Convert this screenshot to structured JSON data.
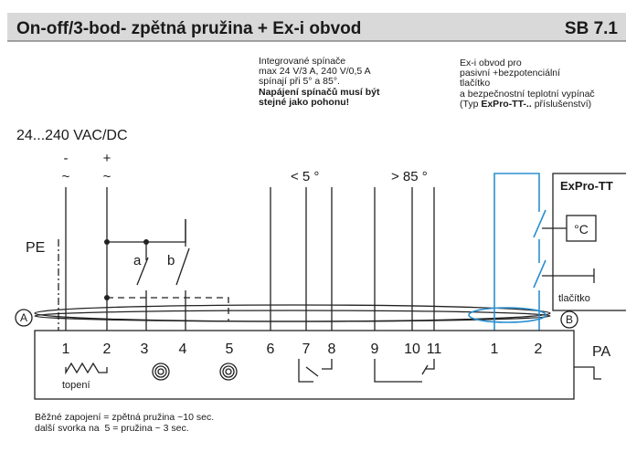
{
  "header": {
    "title": "On-off/3-bod- zpětná pružina + Ex-i obvod",
    "code": "SB 7.1"
  },
  "supply": {
    "label": "24...240 VAC/DC",
    "minus": "-",
    "plus": "+",
    "ac": [
      "~",
      "~"
    ]
  },
  "pe": "PE",
  "switch_labels": [
    "a",
    "b"
  ],
  "limit_switches": {
    "note": [
      "Integrované spínače",
      "max 24 V/3 A, 240 V/0,5 A",
      "spínají při 5° a 85°."
    ],
    "bold_note": [
      "Napájení spínačů musí být",
      "stejné jako pohonu!"
    ],
    "low": "< 5 °",
    "high": "> 85 °"
  },
  "exi": {
    "note": [
      "Ex-i obvod pro",
      "pasivní +bezpotenciální",
      "tlačítko",
      "a bezpečnostní teplotní vypínač"
    ],
    "type_prefix": "(Typ ",
    "type_name": "ExPro-TT-..",
    "type_suffix": " příslušenství)",
    "device": "ExPro-TT",
    "thermostat": "°C",
    "button": "tlačítko"
  },
  "cable_markers": [
    "A",
    "B"
  ],
  "terminals": [
    "1",
    "2",
    "3",
    "4",
    "5",
    "6",
    "7",
    "8",
    "9",
    "10",
    "11",
    "1",
    "2"
  ],
  "heater": "topení",
  "pa": "PA",
  "footer": [
    "Běžné zapojení = zpětná pružina ~10 sec.",
    "další svorka na  5 = pružina ~ 3 sec."
  ]
}
